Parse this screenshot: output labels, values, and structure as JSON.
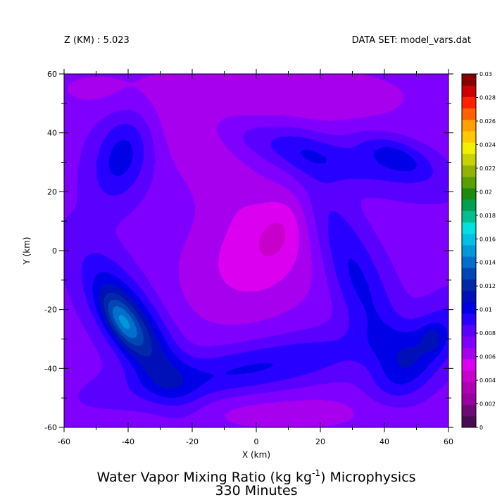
{
  "header": {
    "left": "Z (KM) : 5.023",
    "right": "DATA SET: model_vars.dat"
  },
  "title": {
    "line1_a": "Water Vapor Mixing Ratio (kg kg",
    "line1_sup": "-1",
    "line1_b": ") Microphysics",
    "line2": "330 Minutes"
  },
  "chart_data": {
    "type": "heatmap",
    "subtype": "filled-contour",
    "xlabel": "X (km)",
    "ylabel": "Y (km)",
    "xlim": [
      -60,
      60
    ],
    "ylim": [
      -60,
      60
    ],
    "x_ticks": [
      -60,
      -40,
      -20,
      0,
      20,
      40,
      60
    ],
    "y_ticks": [
      -60,
      -40,
      -20,
      0,
      20,
      40,
      60
    ],
    "x_tick_labels": [
      "-60",
      "-40",
      "-20",
      "0",
      "20",
      "40",
      "60"
    ],
    "y_tick_labels": [
      "-60",
      "-40",
      "-20",
      "0",
      "20",
      "40",
      "60"
    ],
    "colorbar": {
      "levels": [
        0,
        0.001,
        0.002,
        0.003,
        0.004,
        0.005,
        0.006,
        0.007,
        0.008,
        0.009,
        0.01,
        0.011,
        0.012,
        0.013,
        0.014,
        0.015,
        0.016,
        0.017,
        0.018,
        0.019,
        0.02,
        0.021,
        0.022,
        0.023,
        0.024,
        0.025,
        0.026,
        0.027,
        0.028,
        0.029,
        0.03
      ],
      "labels": [
        "0",
        "0.002",
        "0.004",
        "0.006",
        "0.008",
        "0.01",
        "0.012",
        "0.014",
        "0.016",
        "0.018",
        "0.02",
        "0.022",
        "0.024",
        "0.026",
        "0.028",
        "0.03"
      ],
      "label_values": [
        0,
        0.002,
        0.004,
        0.006,
        0.008,
        0.01,
        0.012,
        0.014,
        0.016,
        0.018,
        0.02,
        0.022,
        0.024,
        0.026,
        0.028,
        0.03
      ],
      "colors": [
        "#4a0a52",
        "#6e0a78",
        "#9a00a0",
        "#b000b6",
        "#c800cc",
        "#dc00f0",
        "#a600ee",
        "#8000ff",
        "#5a00ff",
        "#2800ff",
        "#0000e6",
        "#0010b8",
        "#0028a8",
        "#0046b4",
        "#0070cc",
        "#0098d8",
        "#00c0e6",
        "#00e0e0",
        "#00c090",
        "#00a050",
        "#208a10",
        "#58a000",
        "#90b400",
        "#c8d200",
        "#f0f000",
        "#ffc800",
        "#ffa000",
        "#ff6000",
        "#ff2000",
        "#cc0000",
        "#880000"
      ]
    },
    "background_value": 0.0077,
    "features": [
      {
        "name": "central-dry-core",
        "x": 0,
        "y": -2,
        "sx": 18,
        "sy": 14,
        "amp": -0.0022,
        "angle": 45
      },
      {
        "name": "inner-dry-spot",
        "x": 8,
        "y": 8,
        "sx": 5,
        "sy": 9,
        "amp": -0.001,
        "angle": -20
      },
      {
        "name": "outer-dry-north",
        "x": 10,
        "y": 52,
        "sx": 28,
        "sy": 8,
        "amp": -0.0016,
        "angle": 0
      },
      {
        "name": "outer-dry-northwest",
        "x": -18,
        "y": 35,
        "sx": 8,
        "sy": 18,
        "amp": -0.0014,
        "angle": 35
      },
      {
        "name": "outer-dry-south",
        "x": 10,
        "y": -55,
        "sx": 30,
        "sy": 5,
        "amp": -0.0012,
        "angle": 0
      },
      {
        "name": "outer-dry-northwest-corner",
        "x": -52,
        "y": 55,
        "sx": 10,
        "sy": 5,
        "amp": -0.0008,
        "angle": 0
      },
      {
        "name": "moist-band-southwest",
        "x": -38,
        "y": -26,
        "sx": 6,
        "sy": 18,
        "amp": 0.0045,
        "angle": 30
      },
      {
        "name": "moist-core-southwest",
        "x": -42,
        "y": -24,
        "sx": 3,
        "sy": 7,
        "amp": 0.0035,
        "angle": 30
      },
      {
        "name": "moist-band-south",
        "x": -2,
        "y": -40,
        "sx": 28,
        "sy": 6,
        "amp": 0.0025,
        "angle": 12
      },
      {
        "name": "moist-band-east",
        "x": 30,
        "y": -6,
        "sx": 6,
        "sy": 26,
        "amp": 0.0027,
        "angle": 22
      },
      {
        "name": "moist-band-north",
        "x": 20,
        "y": 32,
        "sx": 22,
        "sy": 5,
        "amp": 0.002,
        "angle": -18
      },
      {
        "name": "moist-cell-northwest",
        "x": -42,
        "y": 32,
        "sx": 6,
        "sy": 11,
        "amp": 0.0028,
        "angle": -15
      },
      {
        "name": "moist-cell-northeast",
        "x": 44,
        "y": 32,
        "sx": 9,
        "sy": 4,
        "amp": 0.0026,
        "angle": -25
      },
      {
        "name": "moist-cell-southeast",
        "x": 52,
        "y": -34,
        "sx": 6,
        "sy": 14,
        "amp": 0.0027,
        "angle": -40
      },
      {
        "name": "moist-spot-southeast",
        "x": 55,
        "y": -30,
        "sx": 2,
        "sy": 3,
        "amp": 0.0012,
        "angle": 0
      }
    ]
  }
}
